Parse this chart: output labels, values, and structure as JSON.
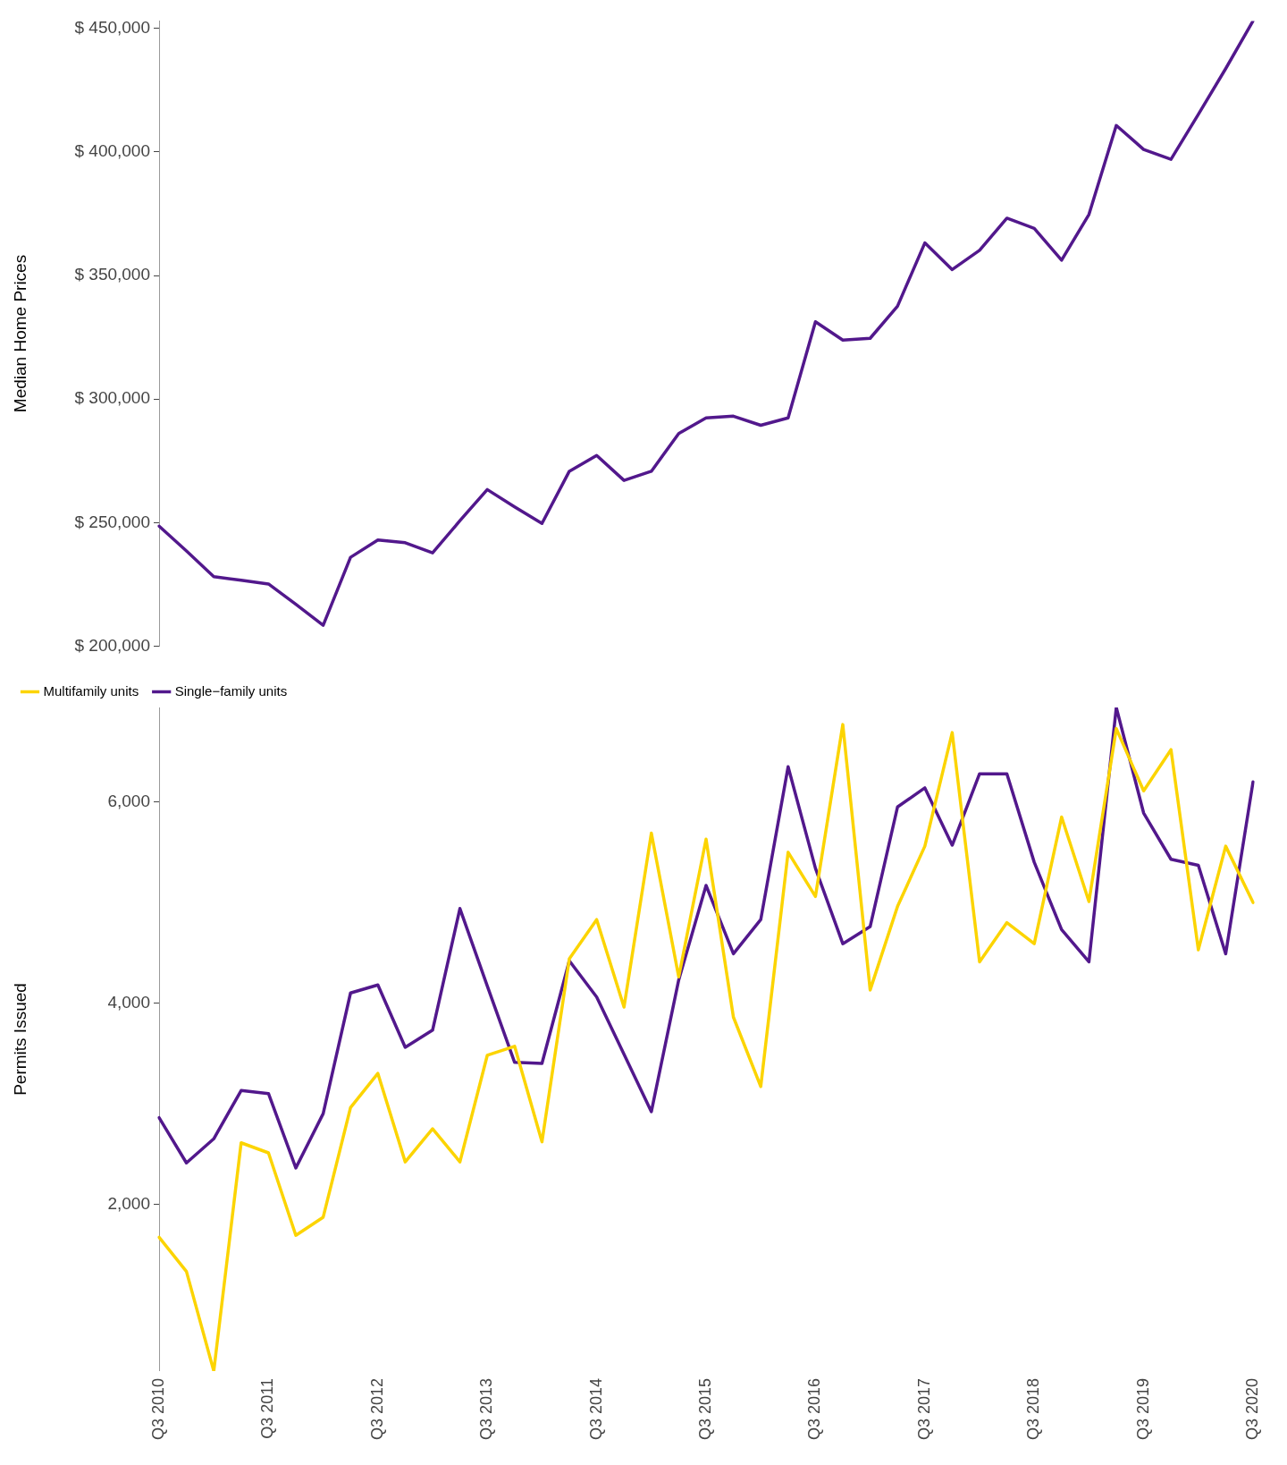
{
  "chart_data": [
    {
      "type": "line",
      "ylabel": "Median Home Prices",
      "categories": [
        null,
        null,
        null,
        null,
        null,
        null,
        null,
        null,
        null,
        null,
        null,
        null,
        null,
        null,
        null,
        null,
        null,
        null,
        null,
        null,
        null,
        null,
        null,
        null,
        null,
        null,
        null,
        null,
        null,
        null,
        null,
        null,
        null,
        null,
        null,
        null,
        null,
        null,
        null,
        null,
        null
      ],
      "series": [
        {
          "color": "#52188c",
          "values": [
            248600,
            238600,
            228200,
            226700,
            225200,
            217000,
            208500,
            236000,
            243000,
            241900,
            237800,
            250800,
            263400,
            256400,
            249700,
            270800,
            277200,
            267100,
            270800,
            286100,
            292400,
            293100,
            289400,
            292400,
            331300,
            323900,
            324600,
            337600,
            363200,
            352400,
            360200,
            373200,
            369100,
            356200,
            374700,
            410700,
            401000,
            397000,
            415200,
            433700,
            453000
          ]
        }
      ],
      "yticks": [
        {
          "value": 200000,
          "label": "$ 200,000"
        },
        {
          "value": 250000,
          "label": "$ 250,000"
        },
        {
          "value": 300000,
          "label": "$ 300,000"
        },
        {
          "value": 350000,
          "label": "$ 350,000"
        },
        {
          "value": 400000,
          "label": "$ 400,000"
        },
        {
          "value": 450000,
          "label": "$ 450,000"
        }
      ],
      "ylim": [
        200000,
        453000
      ],
      "tick_labels": "y",
      "grid": false,
      "legend": false,
      "marker": "none",
      "line_style": "solid"
    },
    {
      "type": "line",
      "ylabel": "Permits Issued",
      "categories": [
        "Q3 2010",
        null,
        null,
        null,
        "Q3 2011",
        null,
        null,
        null,
        "Q3 2012",
        null,
        null,
        null,
        "Q3 2013",
        null,
        null,
        null,
        "Q3 2014",
        null,
        null,
        null,
        "Q3 2015",
        null,
        null,
        null,
        "Q3 2016",
        null,
        null,
        null,
        "Q3 2017",
        null,
        null,
        null,
        "Q3 2018",
        null,
        null,
        null,
        "Q3 2019",
        null,
        null,
        null,
        "Q3 2020"
      ],
      "series": [
        {
          "name": "Multifamily units",
          "color": "#fcd400",
          "values": [
            1670,
            1330,
            340,
            2610,
            2510,
            1690,
            1870,
            2960,
            3300,
            2420,
            2750,
            2420,
            3480,
            3570,
            2620,
            4440,
            4830,
            3960,
            5690,
            4260,
            5630,
            3860,
            3170,
            5500,
            5060,
            6770,
            4130,
            4960,
            5560,
            6690,
            4410,
            4800,
            4590,
            5850,
            5010,
            6730,
            6110,
            6520,
            4530,
            5560,
            5000
          ]
        },
        {
          "name": "Single−family units",
          "color": "#52188c",
          "values": [
            2860,
            2410,
            2650,
            3130,
            3100,
            2360,
            2900,
            4100,
            4180,
            3560,
            3730,
            4940,
            4170,
            3410,
            3400,
            4420,
            4060,
            3490,
            2920,
            4230,
            5170,
            4490,
            4830,
            6350,
            5340,
            4590,
            4760,
            5950,
            6140,
            5570,
            6280,
            6280,
            5400,
            4730,
            4410,
            6940,
            5890,
            5430,
            5370,
            4490,
            6200
          ]
        }
      ],
      "ylim": [
        340,
        6940
      ],
      "yticks": [
        {
          "value": 2000,
          "label": "2,000"
        },
        {
          "value": 4000,
          "label": "4,000"
        },
        {
          "value": 6000,
          "label": "6,000"
        }
      ],
      "grid": false,
      "legend": "top left",
      "marker": "none",
      "line_style": "solid"
    }
  ]
}
